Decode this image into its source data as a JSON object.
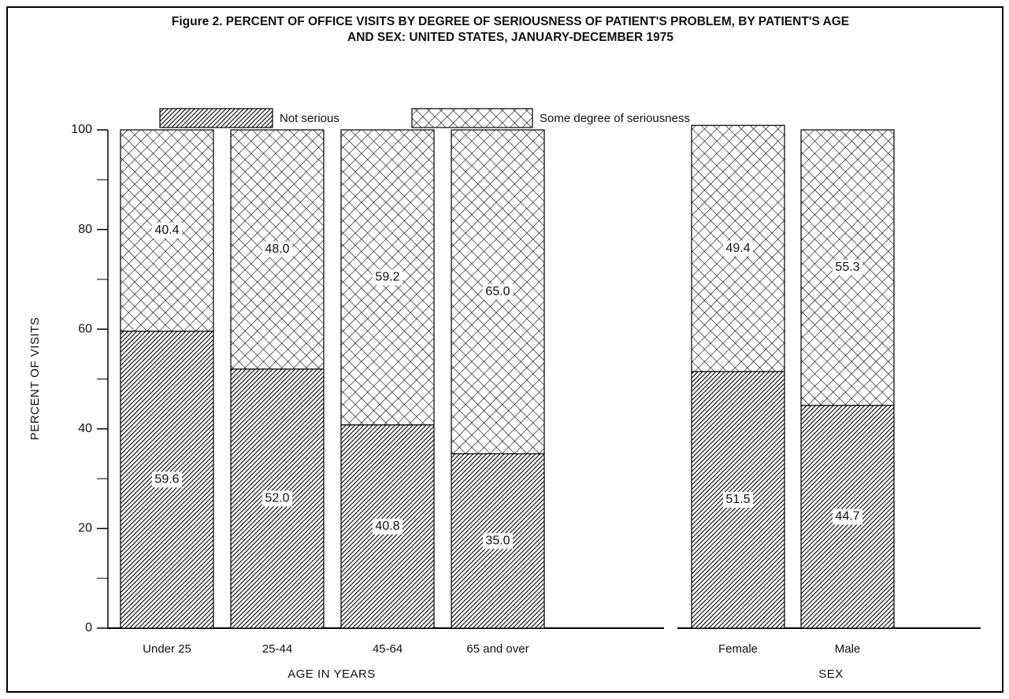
{
  "chart_data": [
    {
      "type": "stacked-bar",
      "title": [
        "Figure 2. PERCENT OF OFFICE VISITS BY DEGREE OF SERIOUSNESS OF PATIENT'S PROBLEM, BY PATIENT'S AGE",
        "AND SEX: UNITED STATES, JANUARY-DECEMBER 1975"
      ],
      "ylabel": "PERCENT OF VISITS",
      "xlabel": "AGE IN YEARS",
      "categories": [
        "Under 25",
        "25-44",
        "45-64",
        "65 and over"
      ],
      "series": [
        {
          "name": "Not serious",
          "color": "#000000",
          "pattern": "diagonal",
          "values": [
            59.6,
            52.0,
            40.8,
            35.0
          ],
          "value_labels": [
            "59.6",
            "52.0",
            "40.8",
            "35.0"
          ]
        },
        {
          "name": "Some degree of seriousness",
          "color": "#000000",
          "pattern": "crosshatch",
          "values": [
            40.4,
            48.0,
            59.2,
            65.0
          ],
          "value_labels": [
            "40.4",
            "48.0",
            "59.2",
            "65.0"
          ]
        }
      ],
      "ylim": [
        0,
        100
      ],
      "yticks": [
        0,
        20,
        40,
        60,
        80,
        100
      ],
      "yminorticks": [
        10,
        30,
        50,
        70,
        90
      ]
    },
    {
      "type": "stacked-bar",
      "xlabel": "SEX",
      "categories": [
        "Female",
        "Male"
      ],
      "series": [
        {
          "color": "#000000",
          "pattern": "diagonal",
          "values": [
            51.5,
            44.7
          ],
          "value_labels": [
            "51.5",
            "44.7"
          ]
        },
        {
          "color": "#000000",
          "pattern": "crosshatch",
          "values": [
            49.4,
            55.3
          ],
          "value_labels": [
            "49.4",
            "55.3"
          ]
        }
      ],
      "ylim": [
        0,
        100
      ]
    }
  ]
}
